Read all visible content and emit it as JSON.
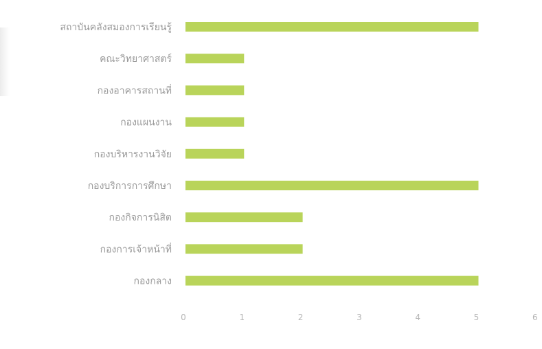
{
  "chart_data": {
    "type": "bar",
    "orientation": "horizontal",
    "title": "",
    "xlabel": "",
    "ylabel": "",
    "categories": [
      "สถาบันคลังสมองการเรียนรู้",
      "คณะวิทยาศาสตร์",
      "กองอาคารสถานที่",
      "กองแผนงาน",
      "กองบริหารงานวิจัย",
      "กองบริการการศึกษา",
      "กองกิจการนิสิต",
      "กองการเจ้าหน้าที่",
      "กองกลาง"
    ],
    "values": [
      5,
      1,
      1,
      1,
      1,
      5,
      2,
      2,
      5
    ],
    "xlim": [
      0,
      6
    ],
    "xticks": [
      "0",
      "1",
      "2",
      "3",
      "4",
      "5",
      "6"
    ],
    "grid": false,
    "legend": "none",
    "colors": {
      "bar": "#b9d45a",
      "label": "#9a9a9a",
      "tick": "#b5b5b5"
    }
  }
}
